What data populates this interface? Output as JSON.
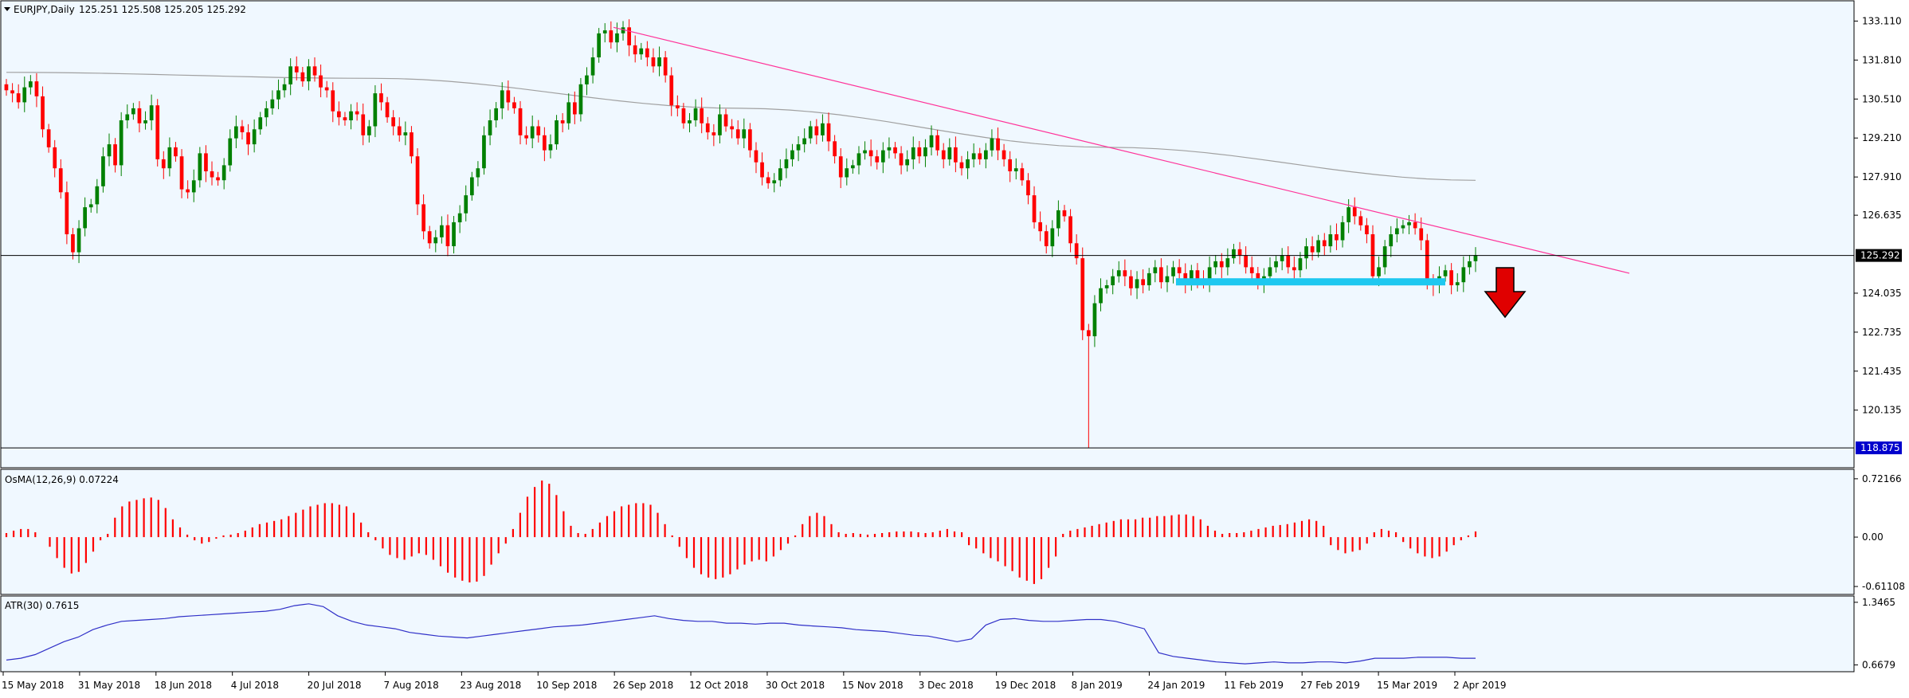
{
  "header": {
    "symbol": "EURJPY,Daily",
    "ohlc": "125.251 125.508 125.205 125.292"
  },
  "colors": {
    "background": "#F0F8FF",
    "bull": "#008000",
    "bear": "#FF0000",
    "trendline": "#FF3399",
    "moving_average": "#A0A0A0",
    "support_zone": "#1EC8F0",
    "atr_line": "#3030C8",
    "arrow": "#E00000"
  },
  "chart_data": [
    {
      "type": "candlestick",
      "title": "EURJPY,Daily",
      "ylim": [
        118.4,
        133.6
      ],
      "y_ticks": [
        "133.110",
        "131.810",
        "130.510",
        "129.210",
        "127.910",
        "126.635",
        "125.292",
        "124.035",
        "122.735",
        "121.435",
        "120.135",
        "118.875"
      ],
      "last_price": "125.292",
      "low_marker": "118.875",
      "x_ticks": [
        "15 May 2018",
        "31 May 2018",
        "18 Jun 2018",
        "4 Jul 2018",
        "20 Jul 2018",
        "7 Aug 2018",
        "23 Aug 2018",
        "10 Sep 2018",
        "26 Sep 2018",
        "12 Oct 2018",
        "30 Oct 2018",
        "15 Nov 2018",
        "3 Dec 2018",
        "19 Dec 2018",
        "8 Jan 2019",
        "24 Jan 2019",
        "11 Feb 2019",
        "27 Feb 2019",
        "15 Mar 2019",
        "2 Apr 2019"
      ],
      "close_series": [
        130.8,
        130.7,
        130.4,
        130.9,
        131.1,
        130.6,
        129.5,
        128.9,
        128.2,
        127.4,
        126.0,
        125.4,
        126.2,
        126.9,
        127.0,
        127.6,
        128.6,
        129.0,
        128.3,
        129.8,
        130.0,
        130.2,
        129.7,
        129.8,
        130.3,
        128.5,
        128.2,
        128.9,
        128.6,
        127.5,
        127.4,
        127.8,
        128.7,
        128.1,
        127.9,
        127.8,
        128.3,
        129.2,
        129.6,
        129.4,
        129.0,
        129.5,
        129.9,
        130.2,
        130.5,
        130.8,
        131.0,
        131.6,
        131.4,
        131.1,
        131.6,
        131.3,
        130.9,
        130.8,
        130.1,
        129.9,
        129.8,
        130.1,
        130.0,
        129.3,
        129.6,
        130.7,
        130.4,
        129.9,
        129.6,
        129.3,
        129.4,
        128.6,
        127.0,
        126.1,
        125.7,
        125.9,
        126.3,
        125.6,
        126.4,
        126.7,
        127.3,
        127.9,
        128.2,
        129.3,
        129.8,
        130.2,
        130.8,
        130.4,
        130.2,
        129.3,
        129.2,
        129.6,
        129.3,
        128.8,
        129.0,
        129.8,
        129.7,
        130.4,
        130.0,
        131.0,
        131.3,
        131.9,
        132.7,
        132.8,
        132.4,
        132.7,
        132.9,
        132.3,
        132.0,
        132.2,
        131.9,
        131.6,
        131.9,
        131.3,
        130.3,
        130.2,
        129.7,
        129.8,
        130.2,
        129.7,
        129.4,
        129.3,
        130.0,
        129.6,
        129.5,
        129.2,
        129.5,
        128.8,
        128.4,
        127.9,
        127.7,
        127.8,
        128.2,
        128.5,
        128.8,
        129.0,
        129.2,
        129.6,
        129.3,
        129.7,
        129.1,
        128.6,
        127.9,
        128.2,
        128.3,
        128.7,
        128.8,
        128.6,
        128.4,
        128.8,
        128.9,
        128.7,
        128.3,
        128.5,
        128.9,
        128.6,
        128.9,
        129.3,
        128.8,
        128.5,
        128.9,
        128.4,
        128.2,
        128.5,
        128.7,
        128.5,
        128.8,
        129.2,
        128.8,
        128.5,
        128.1,
        128.2,
        127.8,
        127.3,
        126.4,
        126.1,
        125.6,
        126.2,
        126.8,
        126.6,
        125.7,
        125.2,
        122.8,
        122.6,
        123.7,
        124.2,
        124.3,
        124.6,
        124.8,
        124.6,
        124.2,
        124.5,
        124.3,
        124.7,
        124.9,
        124.4,
        124.6,
        124.9,
        124.7,
        124.3,
        124.8,
        124.5,
        124.4,
        124.9,
        125.1,
        124.9,
        125.2,
        125.5,
        125.3,
        124.9,
        124.7,
        124.4,
        124.6,
        124.9,
        125.1,
        125.3,
        124.9,
        124.8,
        125.2,
        125.6,
        125.4,
        125.8,
        125.6,
        126.0,
        125.8,
        126.4,
        126.9,
        126.6,
        126.3,
        126.0,
        124.6,
        124.9,
        125.6,
        126.0,
        126.2,
        126.3,
        126.4,
        126.2,
        125.8,
        124.4,
        124.3,
        124.6,
        124.8,
        124.3,
        124.4,
        124.9,
        125.1,
        125.3
      ],
      "moving_average_200": [
        131.4,
        131.2,
        130.2,
        128.9,
        127.8
      ],
      "trendline": [
        132.9,
        124.7
      ],
      "support_level": 124.4
    },
    {
      "type": "bar",
      "title": "OsMA(12,26,9) 0.07224",
      "ylim": [
        -0.65,
        0.75
      ],
      "y_ticks": [
        "0.72166",
        "0.00",
        "-0.61108"
      ],
      "values": [
        0.05,
        0.08,
        0.1,
        0.1,
        0.06,
        0.0,
        -0.12,
        -0.26,
        -0.38,
        -0.45,
        -0.43,
        -0.32,
        -0.18,
        -0.04,
        0.04,
        0.24,
        0.38,
        0.44,
        0.46,
        0.48,
        0.49,
        0.46,
        0.36,
        0.22,
        0.12,
        0.03,
        -0.04,
        -0.08,
        -0.06,
        -0.02,
        0.02,
        0.03,
        0.05,
        0.08,
        0.12,
        0.16,
        0.18,
        0.2,
        0.22,
        0.26,
        0.3,
        0.34,
        0.38,
        0.4,
        0.42,
        0.42,
        0.4,
        0.38,
        0.3,
        0.18,
        0.06,
        -0.04,
        -0.14,
        -0.22,
        -0.26,
        -0.28,
        -0.24,
        -0.2,
        -0.22,
        -0.28,
        -0.36,
        -0.44,
        -0.5,
        -0.54,
        -0.56,
        -0.55,
        -0.48,
        -0.34,
        -0.2,
        -0.08,
        0.1,
        0.3,
        0.5,
        0.62,
        0.7,
        0.66,
        0.52,
        0.32,
        0.14,
        0.05,
        0.04,
        0.1,
        0.18,
        0.26,
        0.32,
        0.38,
        0.4,
        0.42,
        0.42,
        0.4,
        0.3,
        0.16,
        0.02,
        -0.12,
        -0.26,
        -0.38,
        -0.46,
        -0.5,
        -0.52,
        -0.5,
        -0.46,
        -0.4,
        -0.34,
        -0.3,
        -0.28,
        -0.3,
        -0.24,
        -0.16,
        -0.08,
        0.02,
        0.16,
        0.26,
        0.3,
        0.26,
        0.16,
        0.06,
        0.04,
        0.05,
        0.04,
        0.03,
        0.04,
        0.05,
        0.06,
        0.07,
        0.07,
        0.07,
        0.06,
        0.05,
        0.06,
        0.08,
        0.1,
        0.07,
        0.06,
        -0.1,
        -0.14,
        -0.2,
        -0.26,
        -0.3,
        -0.36,
        -0.42,
        -0.5,
        -0.54,
        -0.58,
        -0.52,
        -0.38,
        -0.24,
        0.04,
        0.08,
        0.1,
        0.12,
        0.14,
        0.16,
        0.18,
        0.2,
        0.22,
        0.22,
        0.22,
        0.24,
        0.24,
        0.26,
        0.26,
        0.27,
        0.28,
        0.28,
        0.26,
        0.22,
        0.14,
        0.08,
        0.04,
        0.05,
        0.05,
        0.06,
        0.08,
        0.1,
        0.12,
        0.14,
        0.15,
        0.16,
        0.18,
        0.2,
        0.22,
        0.2,
        0.14,
        -0.1,
        -0.16,
        -0.2,
        -0.18,
        -0.16,
        -0.08,
        0.06,
        0.1,
        0.08,
        0.06,
        -0.06,
        -0.14,
        -0.2,
        -0.24,
        -0.26,
        -0.24,
        -0.18,
        -0.1,
        -0.04,
        0.02,
        0.07
      ]
    },
    {
      "type": "line",
      "title": "ATR(30) 0.7615",
      "ylim": [
        0.62,
        1.38
      ],
      "y_ticks": [
        "1.3465",
        "0.6679"
      ],
      "values": [
        0.72,
        0.74,
        0.78,
        0.85,
        0.92,
        0.97,
        1.05,
        1.1,
        1.14,
        1.15,
        1.16,
        1.17,
        1.19,
        1.2,
        1.21,
        1.22,
        1.23,
        1.24,
        1.25,
        1.27,
        1.31,
        1.33,
        1.3,
        1.2,
        1.14,
        1.1,
        1.08,
        1.06,
        1.02,
        1.0,
        0.98,
        0.97,
        0.96,
        0.98,
        1.0,
        1.02,
        1.04,
        1.06,
        1.08,
        1.09,
        1.1,
        1.12,
        1.14,
        1.16,
        1.18,
        1.2,
        1.17,
        1.15,
        1.14,
        1.14,
        1.12,
        1.12,
        1.11,
        1.12,
        1.12,
        1.1,
        1.09,
        1.08,
        1.07,
        1.05,
        1.04,
        1.03,
        1.01,
        0.99,
        0.98,
        0.95,
        0.92,
        0.95,
        1.1,
        1.16,
        1.17,
        1.15,
        1.14,
        1.14,
        1.15,
        1.16,
        1.16,
        1.14,
        1.1,
        1.06,
        0.8,
        0.76,
        0.74,
        0.72,
        0.7,
        0.69,
        0.68,
        0.69,
        0.7,
        0.69,
        0.69,
        0.7,
        0.7,
        0.69,
        0.71,
        0.74,
        0.74,
        0.74,
        0.75,
        0.75,
        0.75,
        0.74,
        0.74
      ]
    }
  ]
}
